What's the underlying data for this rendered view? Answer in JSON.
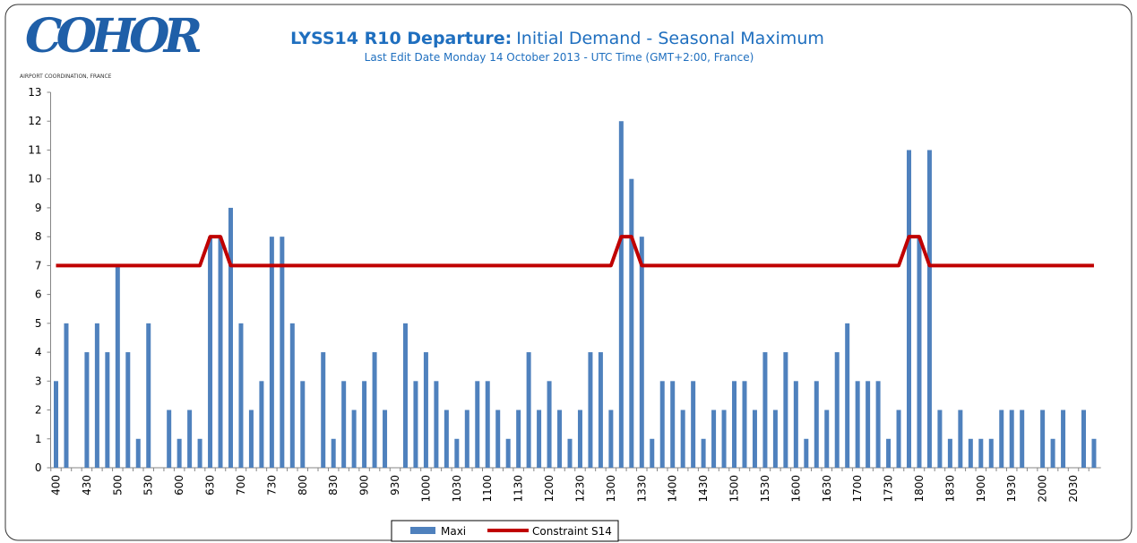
{
  "chart_data": {
    "type": "bar",
    "logo": "COHOR",
    "logo_subtitle": "AIRPORT COORDINATION, FRANCE",
    "title_bold": "LYSS14 R10 Departure:",
    "title": "Initial Demand - Seasonal Maximum",
    "subtitle": "Last Edit Date Monday 14 October 2013 - UTC Time (GMT+2:00,  France)",
    "categories": [
      "400",
      null,
      null,
      "430",
      null,
      null,
      "500",
      null,
      null,
      "530",
      null,
      null,
      "600",
      null,
      null,
      "630",
      null,
      null,
      "700",
      null,
      null,
      "730",
      null,
      null,
      "800",
      null,
      null,
      "830",
      null,
      null,
      "900",
      null,
      null,
      "930",
      null,
      null,
      "1000",
      null,
      null,
      "1030",
      null,
      null,
      "1100",
      null,
      null,
      "1130",
      null,
      null,
      "1200",
      null,
      null,
      "1230",
      null,
      null,
      "1300",
      null,
      null,
      "1330",
      null,
      null,
      "1400",
      null,
      null,
      "1430",
      null,
      null,
      "1500",
      null,
      null,
      "1530",
      null,
      null,
      "1600",
      null,
      null,
      "1630",
      null,
      null,
      "1700",
      null,
      null,
      "1730",
      null,
      null,
      "1800",
      null,
      null,
      "1830",
      null,
      null,
      "1900",
      null,
      null,
      "1930",
      null,
      null,
      "2000",
      null,
      null,
      "2030",
      null,
      null
    ],
    "series": [
      {
        "name": "Maxi",
        "type": "bar",
        "color": "#4f81bd",
        "values": [
          3,
          5,
          0,
          4,
          5,
          4,
          7,
          4,
          1,
          5,
          0,
          2,
          1,
          2,
          1,
          8,
          8,
          9,
          5,
          2,
          3,
          8,
          8,
          5,
          3,
          0,
          4,
          1,
          3,
          2,
          3,
          4,
          2,
          0,
          5,
          3,
          4,
          3,
          2,
          1,
          2,
          3,
          3,
          2,
          1,
          2,
          4,
          2,
          3,
          2,
          1,
          2,
          4,
          4,
          2,
          12,
          10,
          8,
          1,
          3,
          3,
          2,
          3,
          1,
          2,
          2,
          3,
          3,
          2,
          4,
          2,
          4,
          3,
          1,
          3,
          2,
          4,
          5,
          3,
          3,
          3,
          1,
          2,
          11,
          8,
          11,
          2,
          1,
          2,
          1,
          1,
          1,
          2,
          2,
          2,
          0,
          2,
          1,
          2,
          0,
          2,
          1
        ]
      },
      {
        "name": "Constraint S14",
        "type": "line",
        "color": "#c00000",
        "values": [
          7,
          7,
          7,
          7,
          7,
          7,
          7,
          7,
          7,
          7,
          7,
          7,
          7,
          7,
          7,
          8,
          8,
          7,
          7,
          7,
          7,
          7,
          7,
          7,
          7,
          7,
          7,
          7,
          7,
          7,
          7,
          7,
          7,
          7,
          7,
          7,
          7,
          7,
          7,
          7,
          7,
          7,
          7,
          7,
          7,
          7,
          7,
          7,
          7,
          7,
          7,
          7,
          7,
          7,
          7,
          8,
          8,
          7,
          7,
          7,
          7,
          7,
          7,
          7,
          7,
          7,
          7,
          7,
          7,
          7,
          7,
          7,
          7,
          7,
          7,
          7,
          7,
          7,
          7,
          7,
          7,
          7,
          7,
          8,
          8,
          7,
          7,
          7,
          7,
          7,
          7,
          7,
          7,
          7,
          7,
          7,
          7,
          7,
          7,
          7,
          7,
          7
        ]
      }
    ],
    "ylim": [
      0,
      13
    ],
    "yticks": [
      0,
      1,
      2,
      3,
      4,
      5,
      6,
      7,
      8,
      9,
      10,
      11,
      12,
      13
    ],
    "legend": "bottom"
  }
}
